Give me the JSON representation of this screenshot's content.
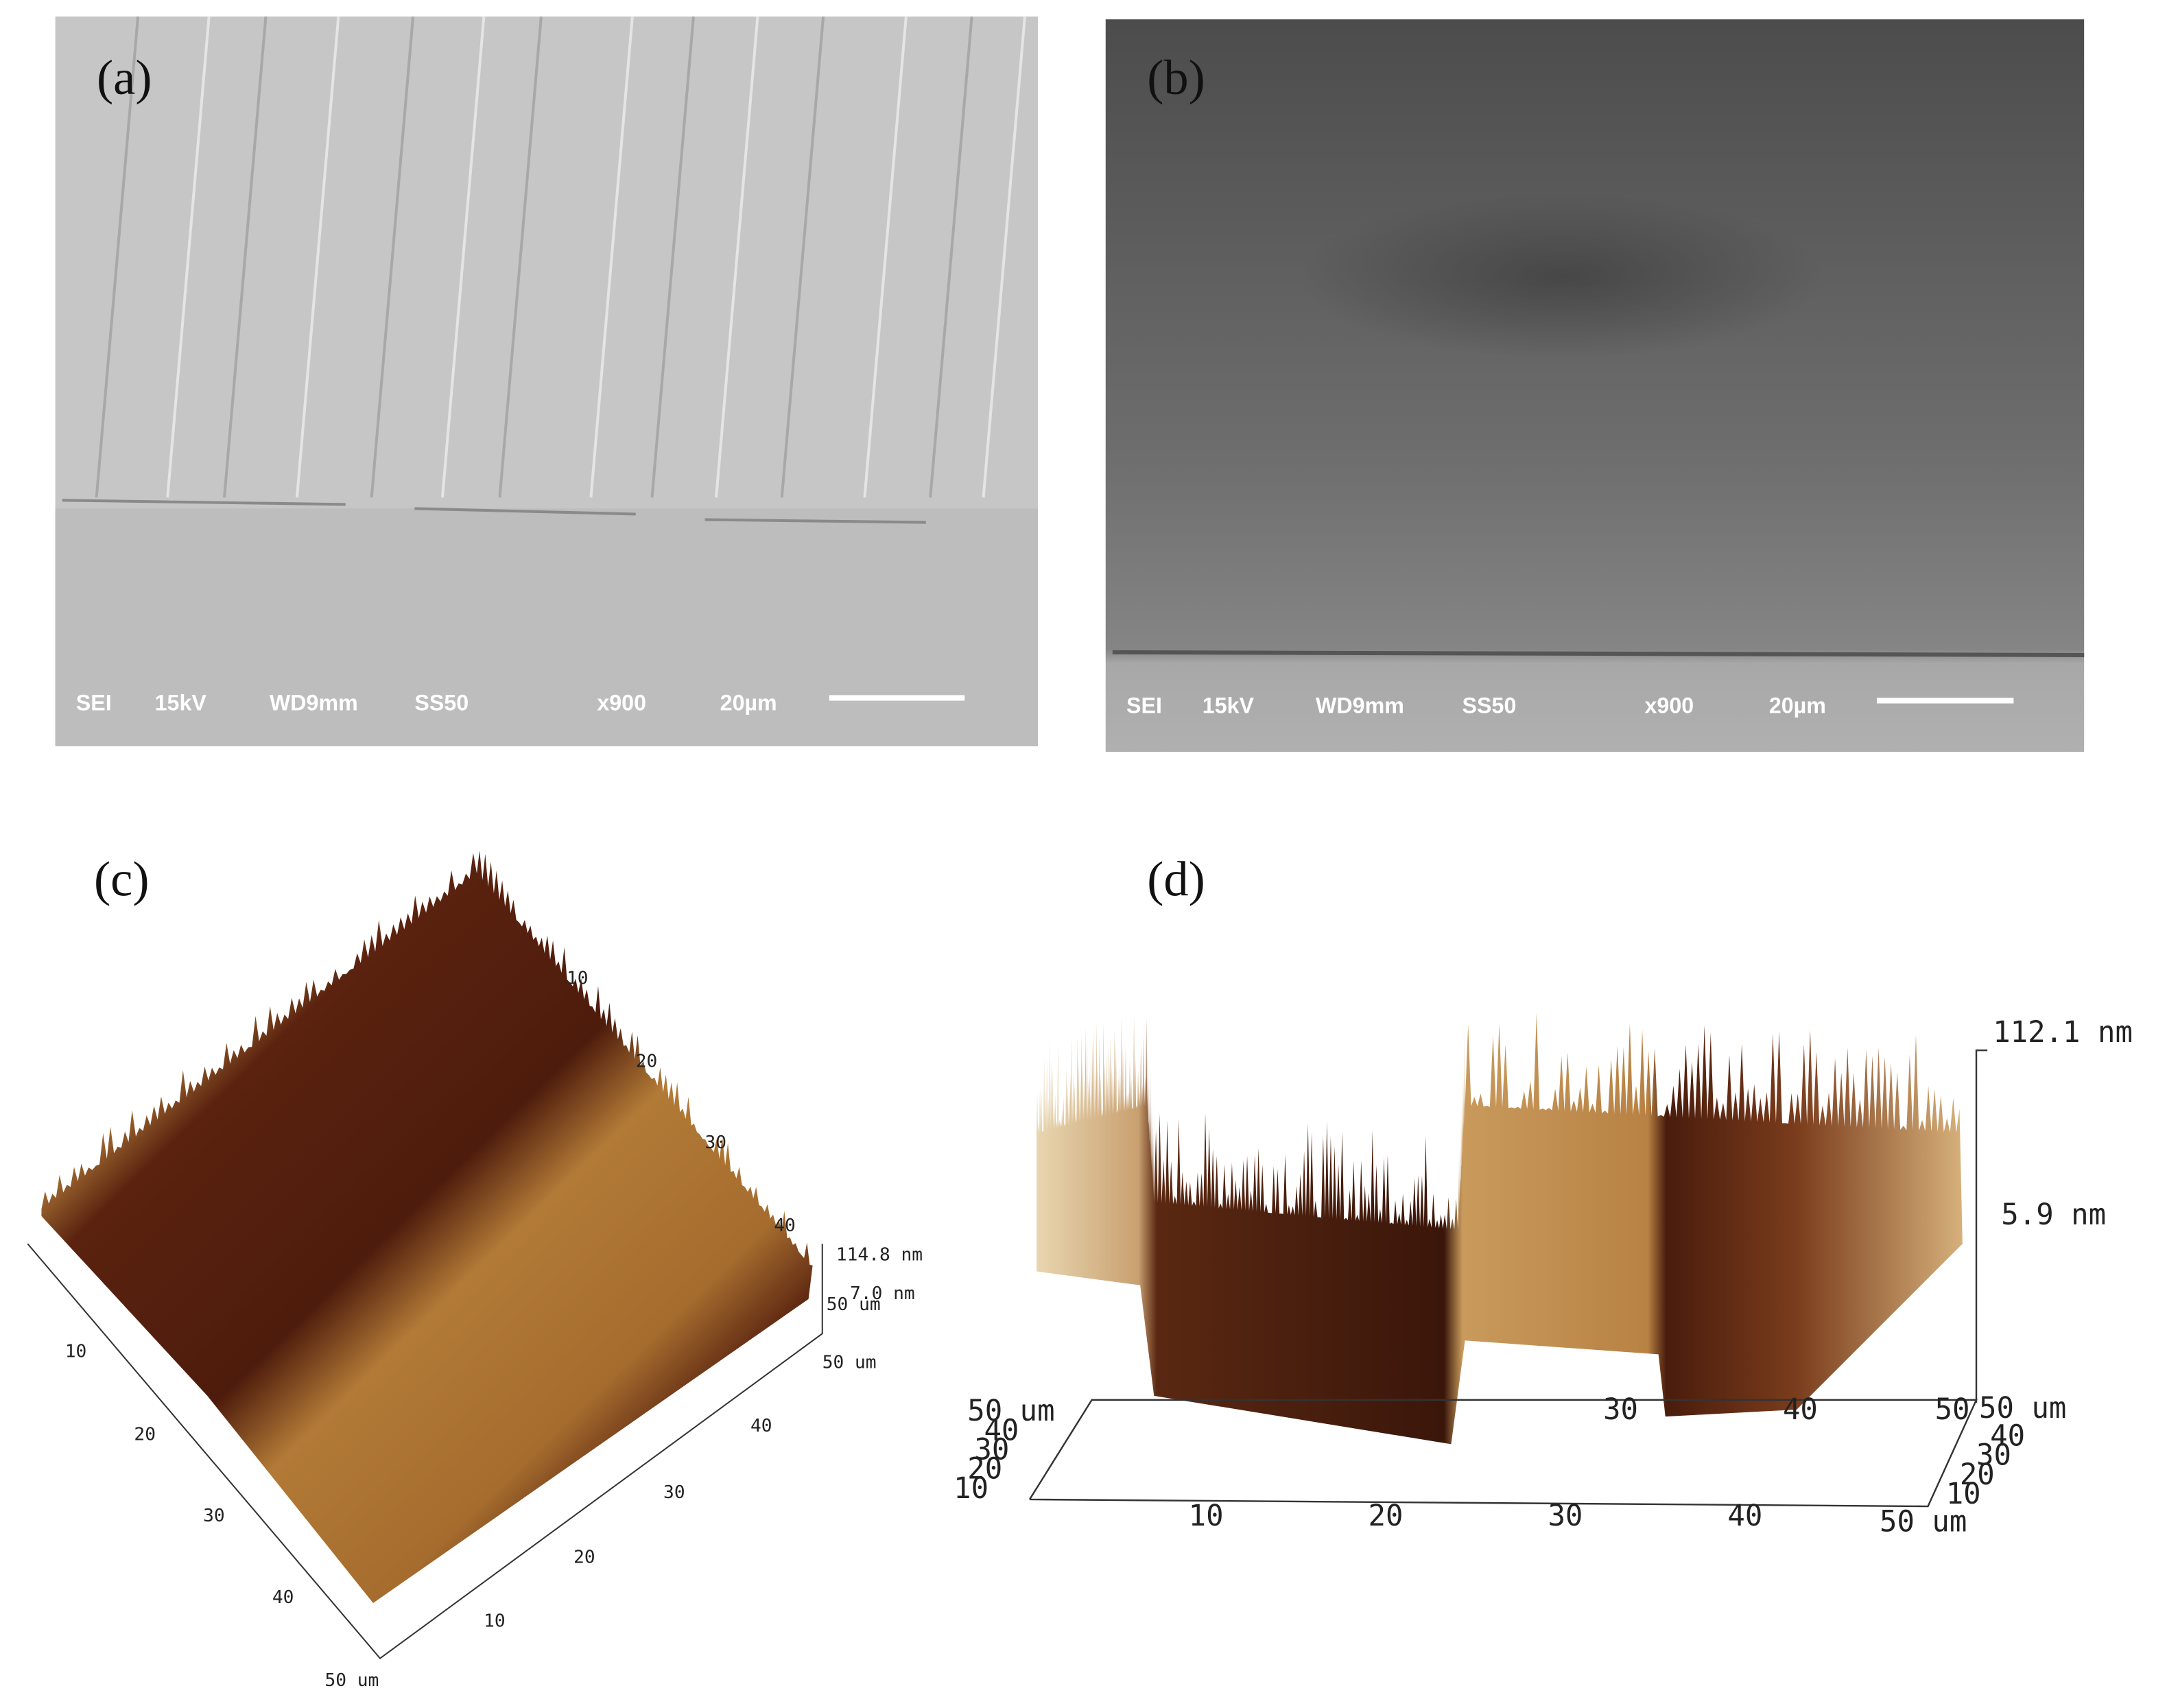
{
  "panels": [
    {
      "label": "(a)",
      "info": [
        "SEI",
        "15kV",
        "WD9mm",
        "SS50",
        "x900",
        "20µm"
      ]
    },
    {
      "label": "(b)",
      "info": [
        "SEI",
        "15kV",
        "WD9mm",
        "SS50",
        "x900",
        "20µm"
      ]
    }
  ],
  "afm": [
    {
      "label": "(c)",
      "z_labels": [
        "114.8 nm",
        "7.0 nm"
      ],
      "top_ticks": [
        "10",
        "20",
        "30",
        "40",
        "50 um"
      ],
      "left_ticks": [
        "10",
        "20",
        "30",
        "40",
        "50 um"
      ],
      "bottom_ticks": [
        "10",
        "20",
        "30",
        "40",
        "50 um"
      ]
    },
    {
      "label": "(d)",
      "z_labels": [
        "112.1 nm",
        "5.9 nm"
      ],
      "bottom_ticks": [
        "10",
        "20",
        "30",
        "40",
        "50 um"
      ],
      "left_ticks": [
        "50 um",
        "40",
        "30",
        "20",
        "10"
      ],
      "right_ticks": [
        "50 um",
        "40",
        "30",
        "20",
        "10"
      ],
      "back_ticks": [
        "30",
        "40",
        "50"
      ]
    }
  ]
}
